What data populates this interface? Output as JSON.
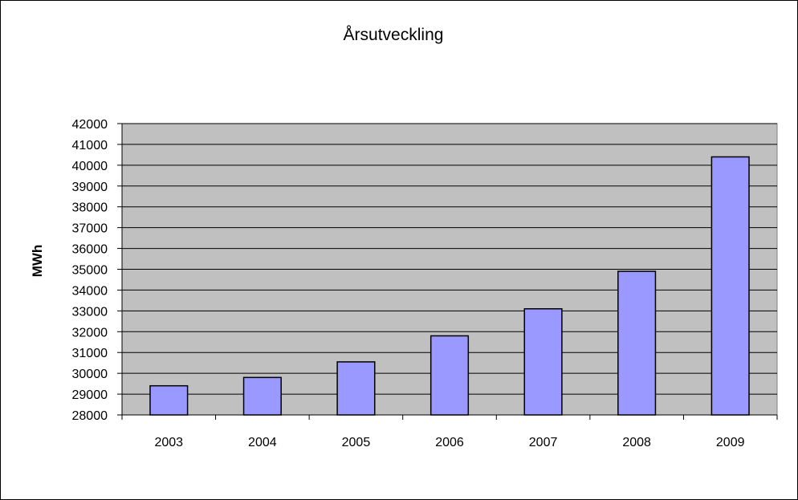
{
  "chart_data": {
    "type": "bar",
    "title": "Årsutveckling",
    "xlabel": "",
    "ylabel": "MWh",
    "categories": [
      "2003",
      "2004",
      "2005",
      "2006",
      "2007",
      "2008",
      "2009"
    ],
    "values": [
      29400,
      29800,
      30550,
      31800,
      33100,
      34900,
      40400
    ],
    "ylim": [
      28000,
      42000
    ],
    "ytick_step": 1000,
    "grid": true,
    "legend": "none",
    "colors": {
      "bar_fill": "#9999ff",
      "plot_background": "#c0c0c0",
      "gridline": "#000000"
    }
  }
}
